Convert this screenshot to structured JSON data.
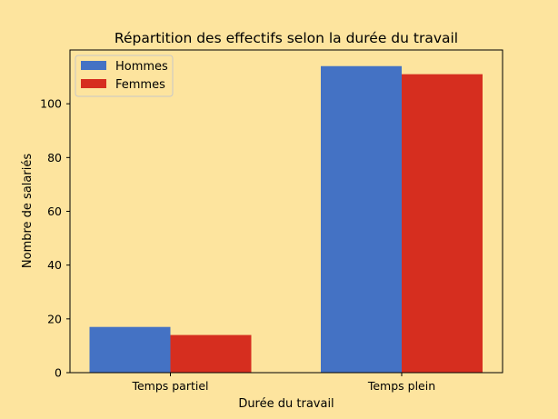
{
  "colors": {
    "background": "#fde49e",
    "hommes": "#4472c4",
    "femmes": "#d62e1f"
  },
  "chart_data": {
    "type": "bar",
    "title": "Répartition des effectifs selon la durée du travail",
    "xlabel": "Durée du travail",
    "ylabel": "Nombre de salariés",
    "categories": [
      "Temps partiel",
      "Temps plein"
    ],
    "series": [
      {
        "name": "Hommes",
        "values": [
          17,
          114
        ],
        "color": "#4472c4"
      },
      {
        "name": "Femmes",
        "values": [
          14,
          111
        ],
        "color": "#d62e1f"
      }
    ],
    "ylim": [
      0,
      120
    ],
    "yticks": [
      0,
      20,
      40,
      60,
      80,
      100
    ],
    "grid": false,
    "legend_position": "top-left"
  }
}
